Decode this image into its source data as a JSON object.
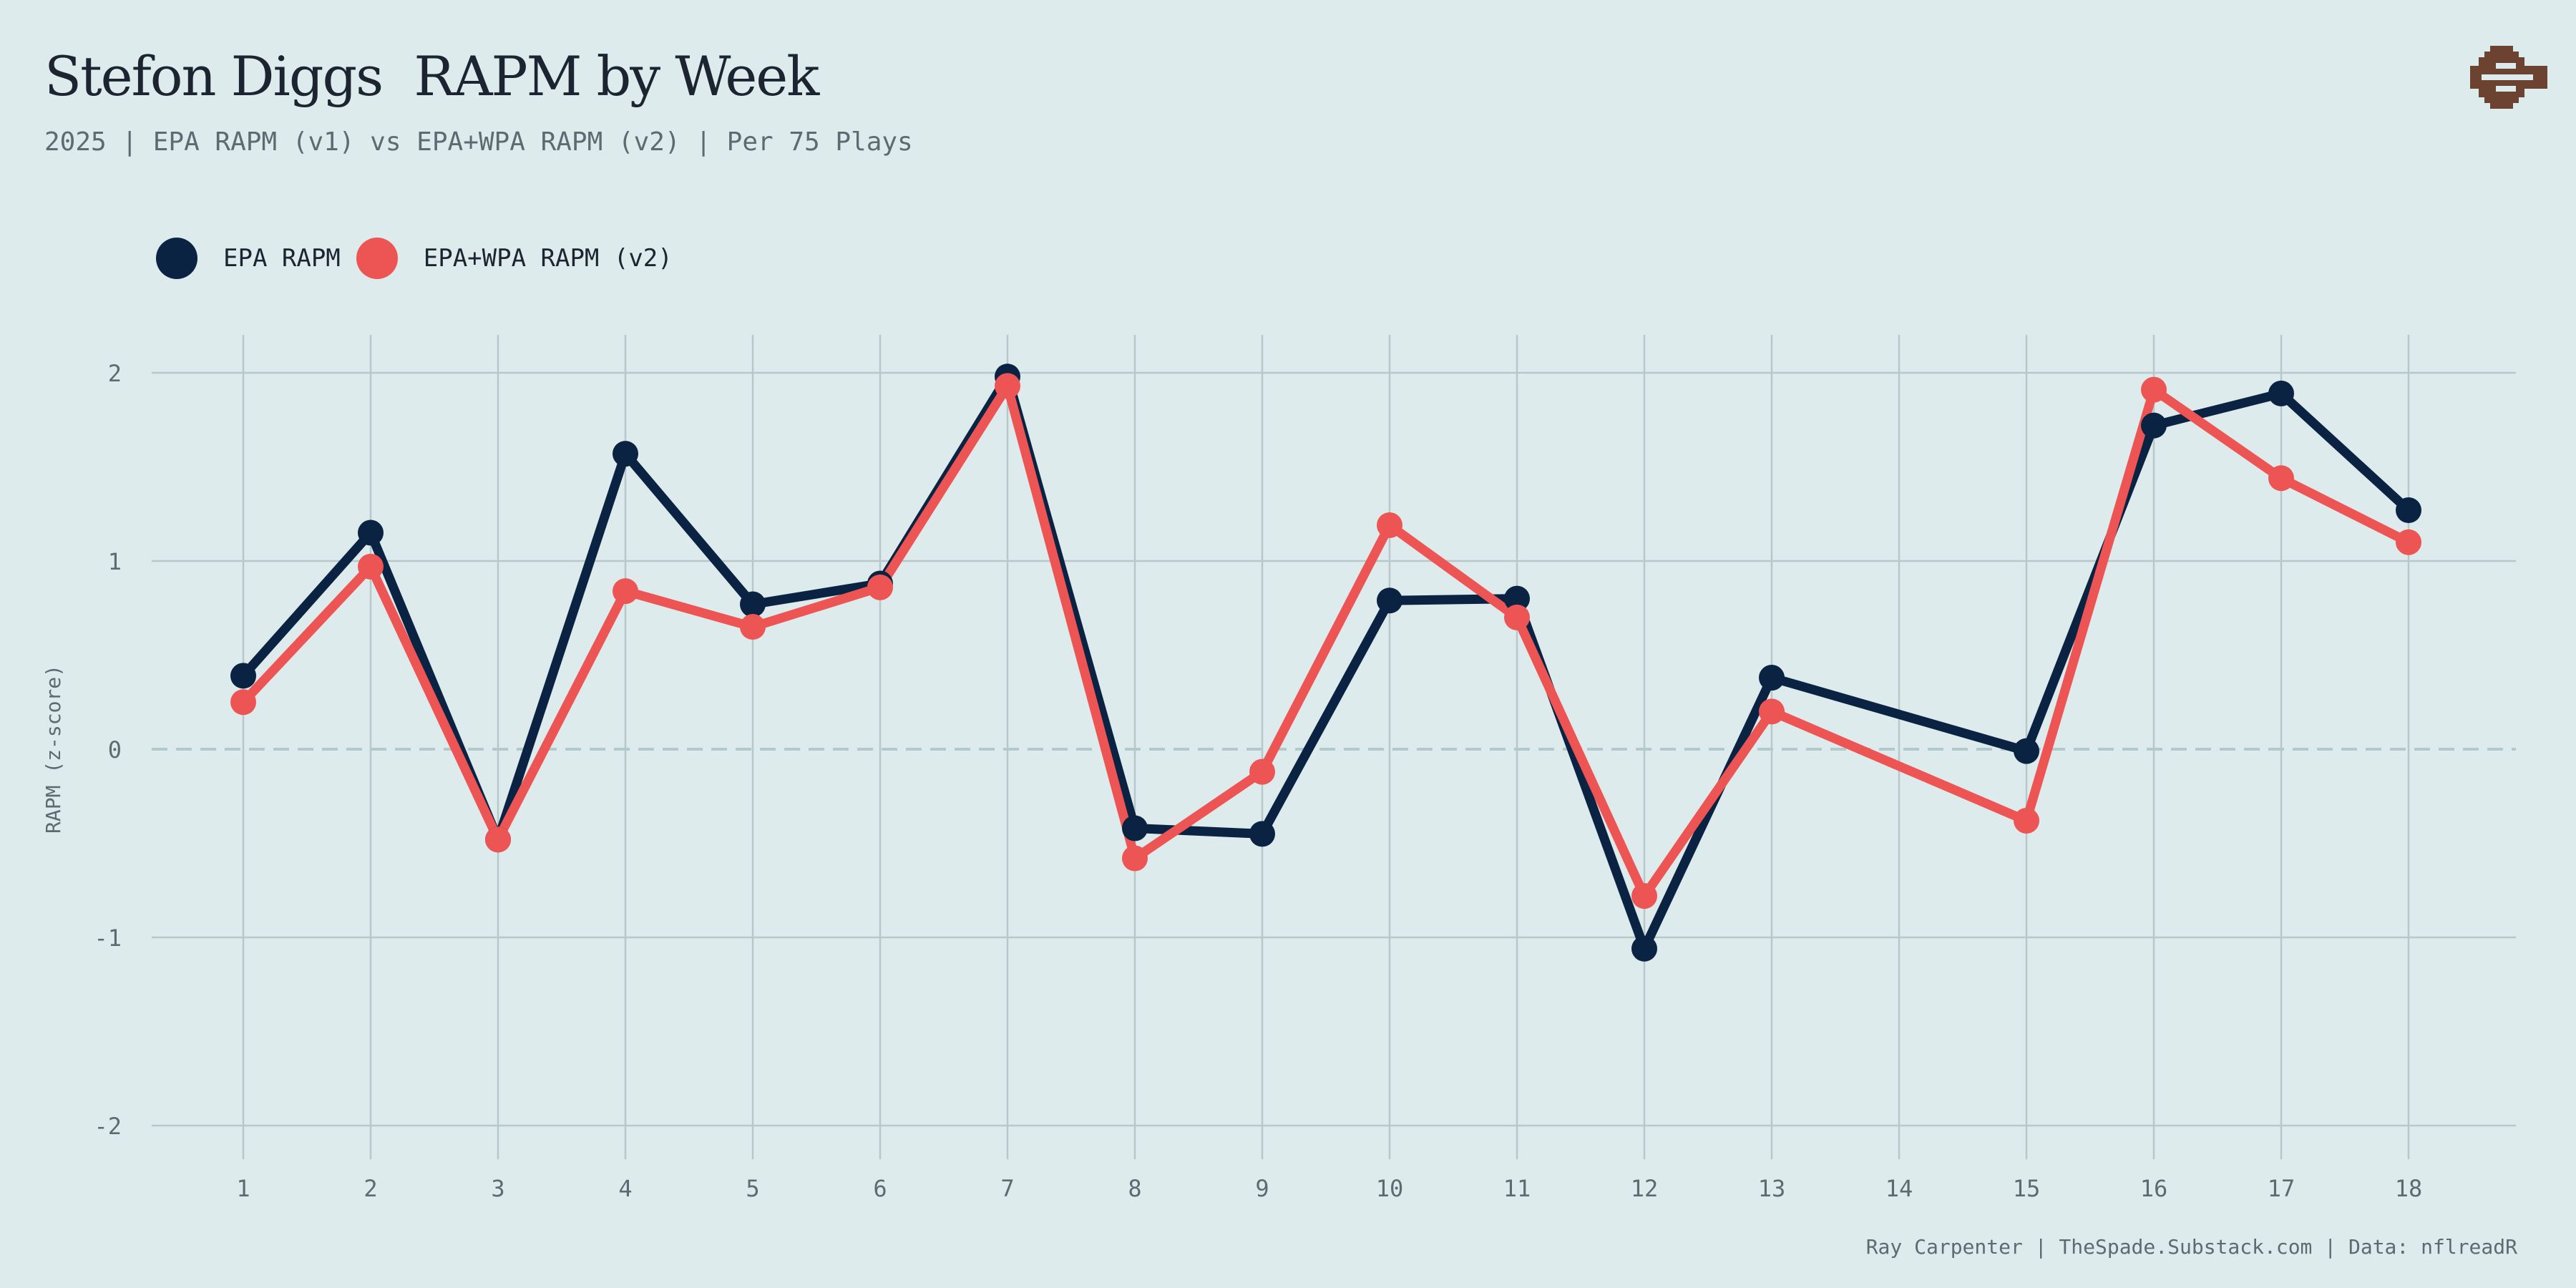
{
  "title": "Stefon Diggs  RAPM by Week",
  "subtitle": "2025 | EPA RAPM (v1) vs EPA+WPA RAPM (v2) | Per 75 Plays",
  "footer": "Ray Carpenter | TheSpade.Substack.com | Data: nflreadR",
  "colors": {
    "background": "#deebec",
    "epa": "#0b2342",
    "epa_wpa": "#ec5553",
    "grid": "#b6c8ca",
    "logo": "#6b4330"
  },
  "logo_icon": "brown-pixel-logo-icon",
  "chart_data": {
    "type": "line",
    "xlabel": "",
    "ylabel": "RAPM (z-score)",
    "x_ticks": [
      1,
      2,
      3,
      4,
      5,
      6,
      7,
      8,
      9,
      10,
      11,
      12,
      13,
      14,
      15,
      16,
      17,
      18
    ],
    "y_ticks": [
      2,
      1,
      0,
      -1,
      -2
    ],
    "ylim": [
      -2.2,
      2.2
    ],
    "xlim": [
      0.3,
      18.85
    ],
    "grid": true,
    "zero_line": "dashed",
    "legend": "top-left",
    "series": [
      {
        "name": "EPA RAPM",
        "color": "#0b2342",
        "x": [
          1,
          2,
          3,
          4,
          5,
          6,
          7,
          8,
          9,
          10,
          11,
          12,
          13,
          15,
          16,
          17,
          18
        ],
        "y": [
          0.39,
          1.15,
          -0.48,
          1.57,
          0.77,
          0.88,
          1.98,
          -0.42,
          -0.45,
          0.79,
          0.8,
          -1.06,
          0.38,
          -0.01,
          1.72,
          1.89,
          1.27
        ]
      },
      {
        "name": "EPA+WPA RAPM (v2)",
        "color": "#ec5553",
        "x": [
          1,
          2,
          3,
          4,
          5,
          6,
          7,
          8,
          9,
          10,
          11,
          12,
          13,
          15,
          16,
          17,
          18
        ],
        "y": [
          0.25,
          0.97,
          -0.48,
          0.84,
          0.65,
          0.86,
          1.93,
          -0.58,
          -0.12,
          1.19,
          0.7,
          -0.78,
          0.2,
          -0.38,
          1.91,
          1.44,
          1.1
        ]
      }
    ]
  }
}
